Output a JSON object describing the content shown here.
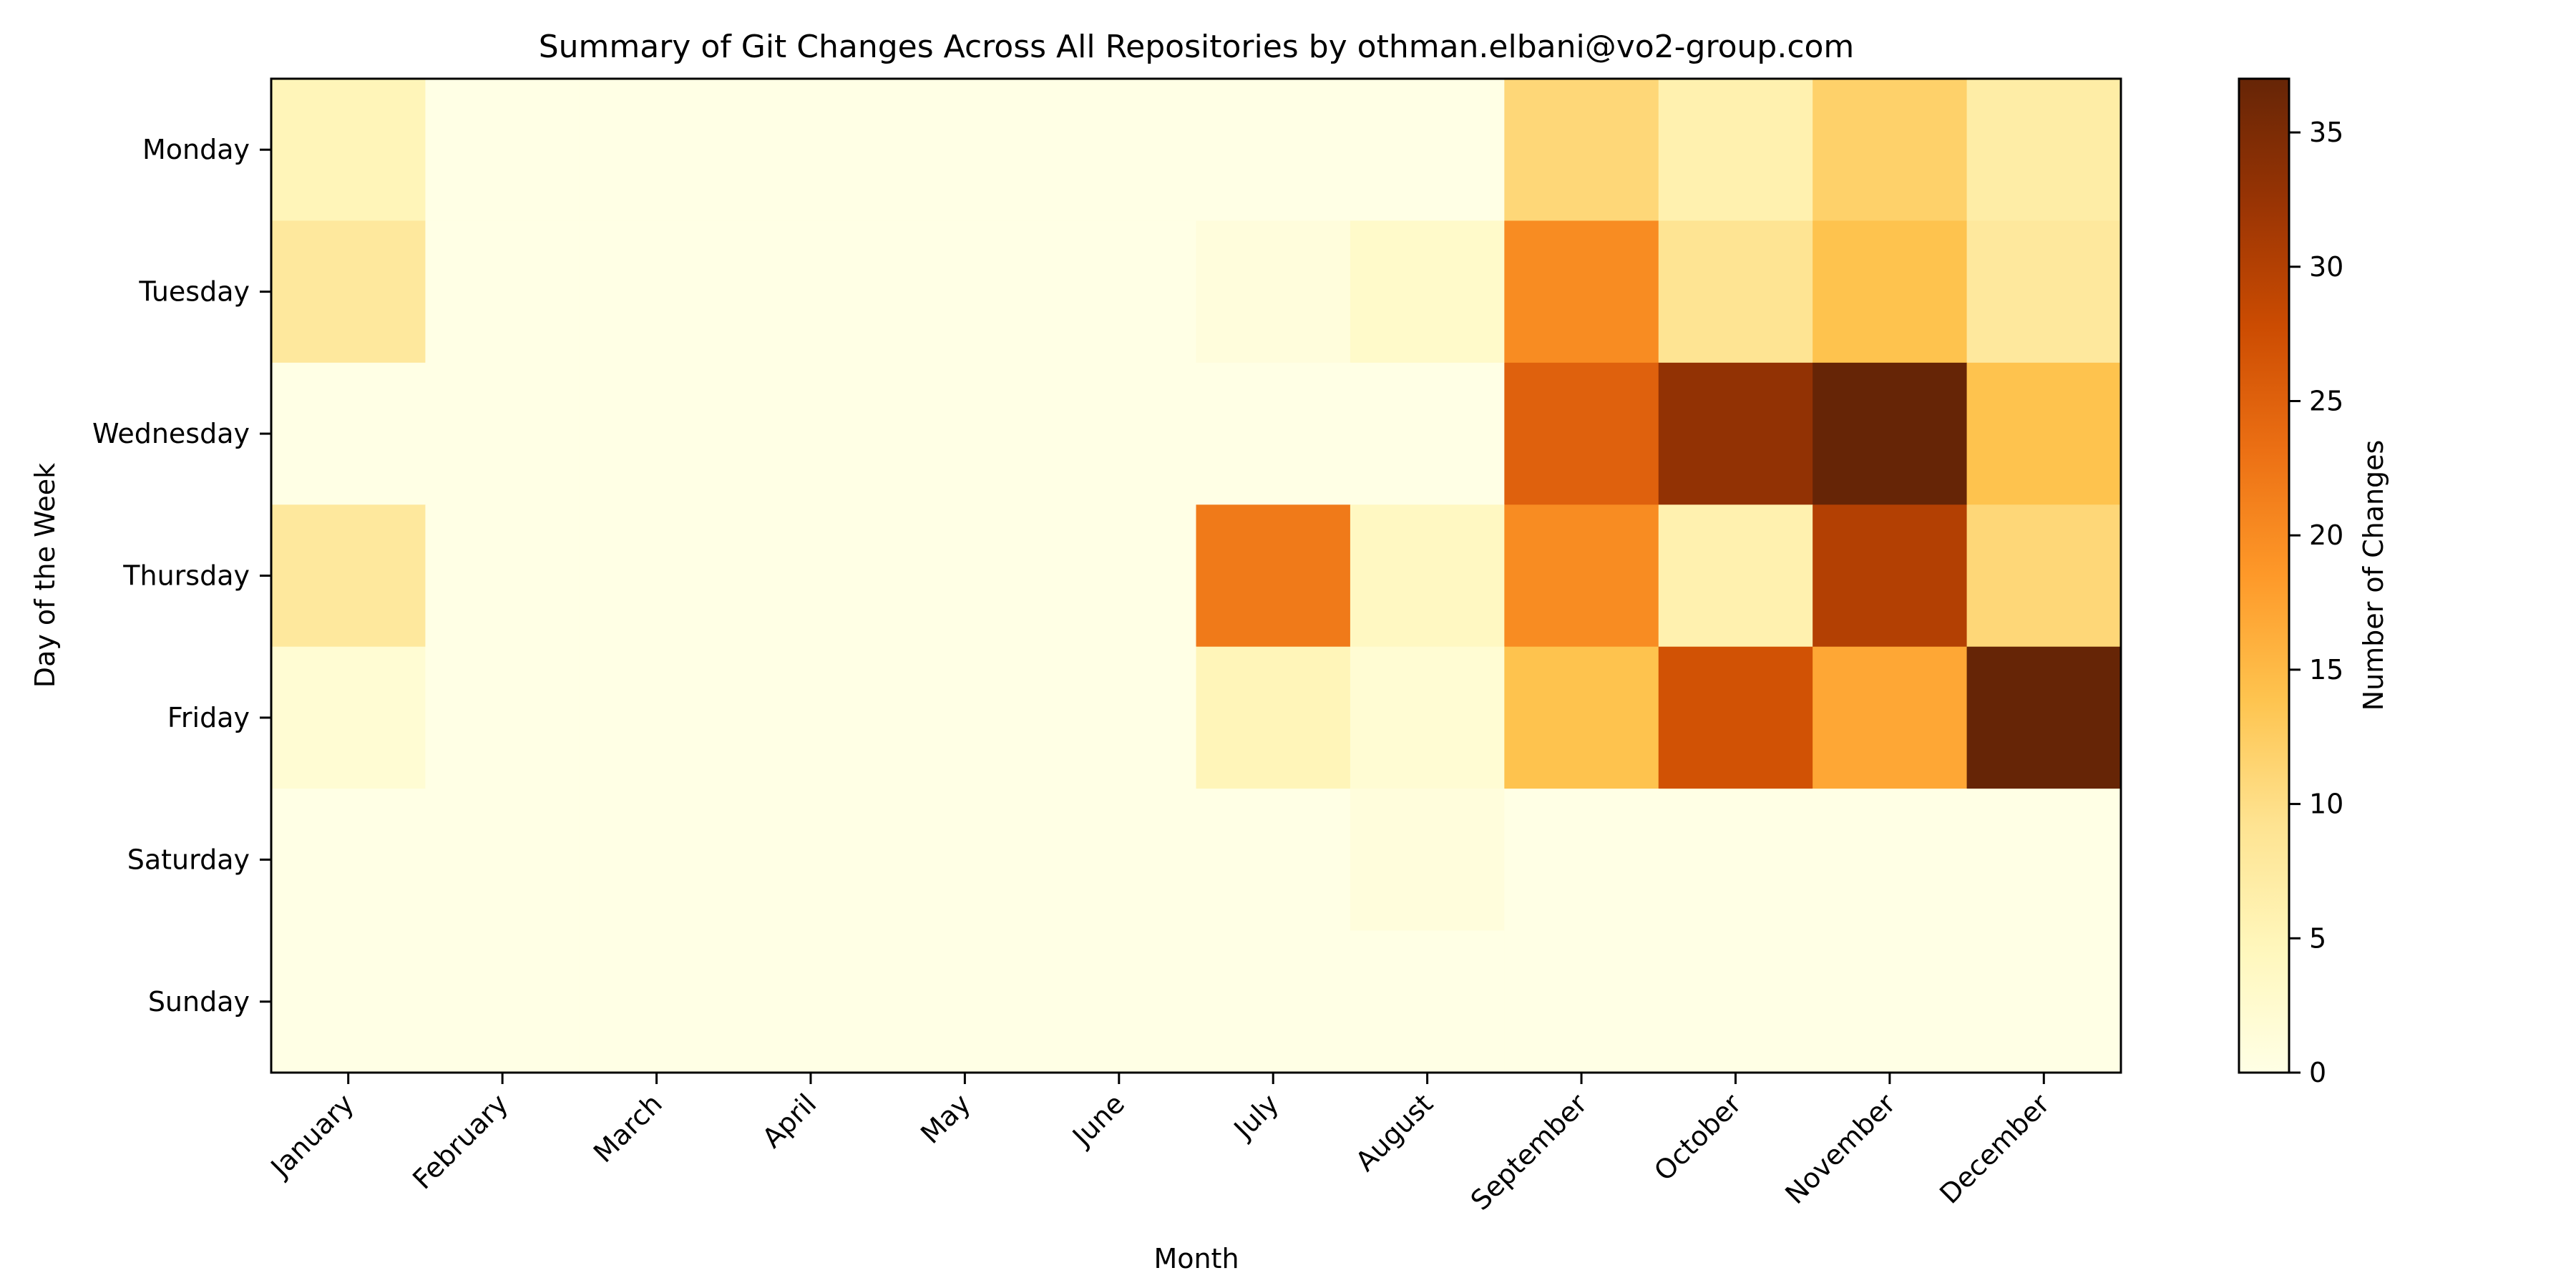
{
  "chart_data": {
    "type": "heatmap",
    "title": "Summary of Git Changes Across All Repositories by othman.elbani@vo2-group.com",
    "xlabel": "Month",
    "ylabel": "Day of the Week",
    "colorbar_label": "Number of Changes",
    "x_categories": [
      "January",
      "February",
      "March",
      "April",
      "May",
      "June",
      "July",
      "August",
      "September",
      "October",
      "November",
      "December"
    ],
    "y_categories": [
      "Monday",
      "Tuesday",
      "Wednesday",
      "Thursday",
      "Friday",
      "Saturday",
      "Sunday"
    ],
    "values": [
      [
        5,
        0,
        0,
        0,
        0,
        0,
        0,
        0,
        11,
        6,
        12,
        7
      ],
      [
        8,
        0,
        0,
        0,
        0,
        0,
        1,
        3,
        20,
        9,
        14,
        8
      ],
      [
        0,
        0,
        0,
        0,
        0,
        0,
        0,
        0,
        25,
        33,
        37,
        14
      ],
      [
        8,
        0,
        0,
        0,
        0,
        0,
        22,
        4,
        20,
        6,
        30,
        11
      ],
      [
        2,
        0,
        0,
        0,
        0,
        0,
        5,
        2,
        14,
        27,
        17,
        37
      ],
      [
        0,
        0,
        0,
        0,
        0,
        0,
        0,
        1,
        0,
        0,
        0,
        0
      ],
      [
        0,
        0,
        0,
        0,
        0,
        0,
        0,
        0,
        0,
        0,
        0,
        0
      ]
    ],
    "vmin": 0,
    "vmax": 37,
    "colorbar_ticks": [
      0,
      5,
      10,
      15,
      20,
      25,
      30,
      35
    ],
    "colormap": "YlOrBr",
    "grid": false
  }
}
